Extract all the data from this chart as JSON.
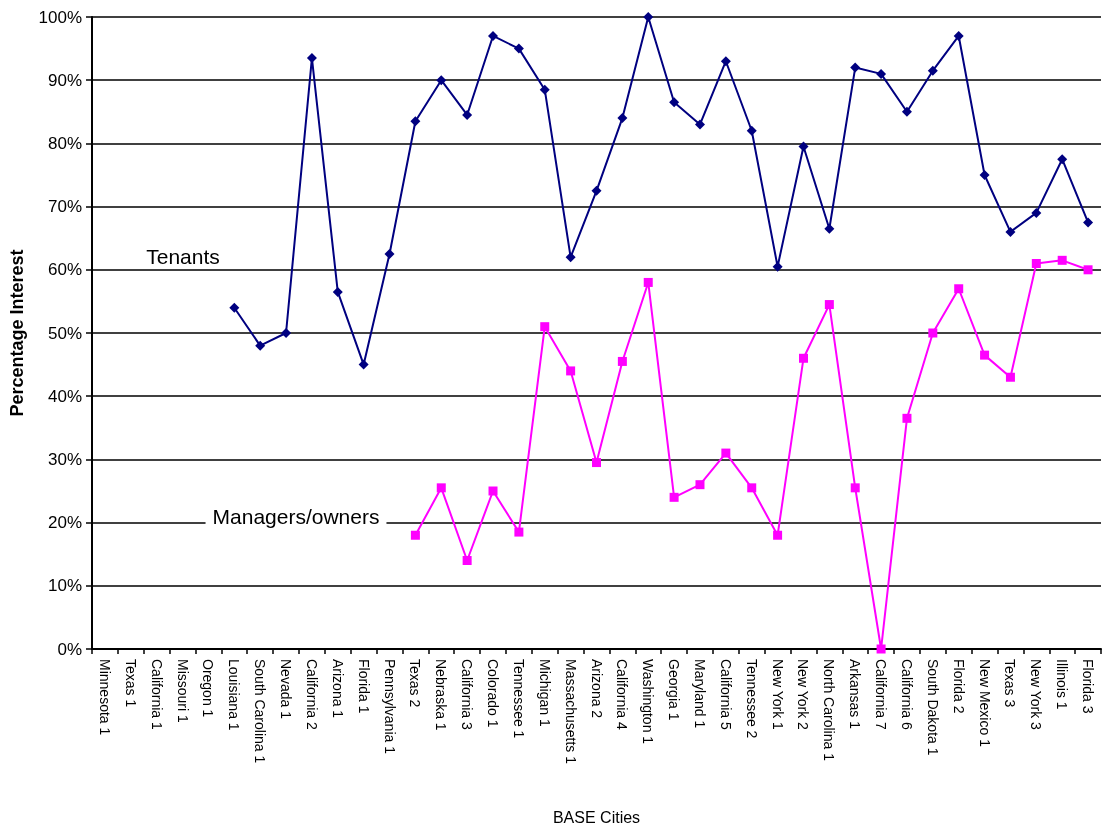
{
  "chart_data": {
    "type": "line",
    "xlabel": "BASE Cities",
    "ylabel": "Percentage Interest",
    "categories": [
      "Minnesota 1",
      "Texas 1",
      "California 1",
      "Missouri 1",
      "Oregon 1",
      "Louisiana 1",
      "South Carolina 1",
      "Nevada 1",
      "California 2",
      "Arizona 1",
      "Florida 1",
      "Pennsylvania 1",
      "Texas 2",
      "Nebraska 1",
      "California 3",
      "Colorado 1",
      "Tennessee 1",
      "Michigan 1",
      "Massachusetts 1",
      "Arizona 2",
      "California 4",
      "Washington 1",
      "Georgia 1",
      "Maryland 1",
      "California 5",
      "Tennessee 2",
      "New York 1",
      "New York 2",
      "North Carolina 1",
      "Arkansas 1",
      "California 7",
      "California 6",
      "South Dakota 1",
      "Florida 2",
      "New Mexico 1",
      "Texas 3",
      "New York 3",
      "Illinois 1",
      "Florida 3"
    ],
    "series": [
      {
        "name": "Tenants",
        "color": "#000080",
        "marker": "diamond",
        "values": [
          null,
          null,
          null,
          null,
          null,
          54,
          48,
          50,
          93.5,
          56.5,
          45,
          62.5,
          83.5,
          90,
          84.5,
          97,
          95,
          88.5,
          62,
          72.5,
          84,
          100,
          86.5,
          83,
          93,
          82,
          60.5,
          79.5,
          66.5,
          92,
          91,
          85,
          91.5,
          97,
          75,
          66,
          69,
          77.5,
          67.5
        ]
      },
      {
        "name": "Managers/owners",
        "color": "#ff00ff",
        "marker": "square",
        "values": [
          null,
          null,
          null,
          null,
          null,
          null,
          null,
          null,
          null,
          null,
          null,
          null,
          18,
          25.5,
          14,
          25,
          18.5,
          51,
          44,
          29.5,
          45.5,
          58,
          24,
          26,
          31,
          25.5,
          18,
          46,
          54.5,
          25.5,
          0,
          36.5,
          50,
          57,
          46.5,
          43,
          61,
          61.5,
          60
        ]
      }
    ],
    "ylim": [
      0,
      100
    ],
    "yticks": [
      {
        "value": 0,
        "label": "0%"
      },
      {
        "value": 10,
        "label": "10%"
      },
      {
        "value": 20,
        "label": "20%"
      },
      {
        "value": 30,
        "label": "30%"
      },
      {
        "value": 40,
        "label": "40%"
      },
      {
        "value": 50,
        "label": "50%"
      },
      {
        "value": 60,
        "label": "60%"
      },
      {
        "value": 70,
        "label": "70%"
      },
      {
        "value": 80,
        "label": "80%"
      },
      {
        "value": 90,
        "label": "90%"
      },
      {
        "value": 100,
        "label": "100%"
      }
    ],
    "grid": "y"
  }
}
